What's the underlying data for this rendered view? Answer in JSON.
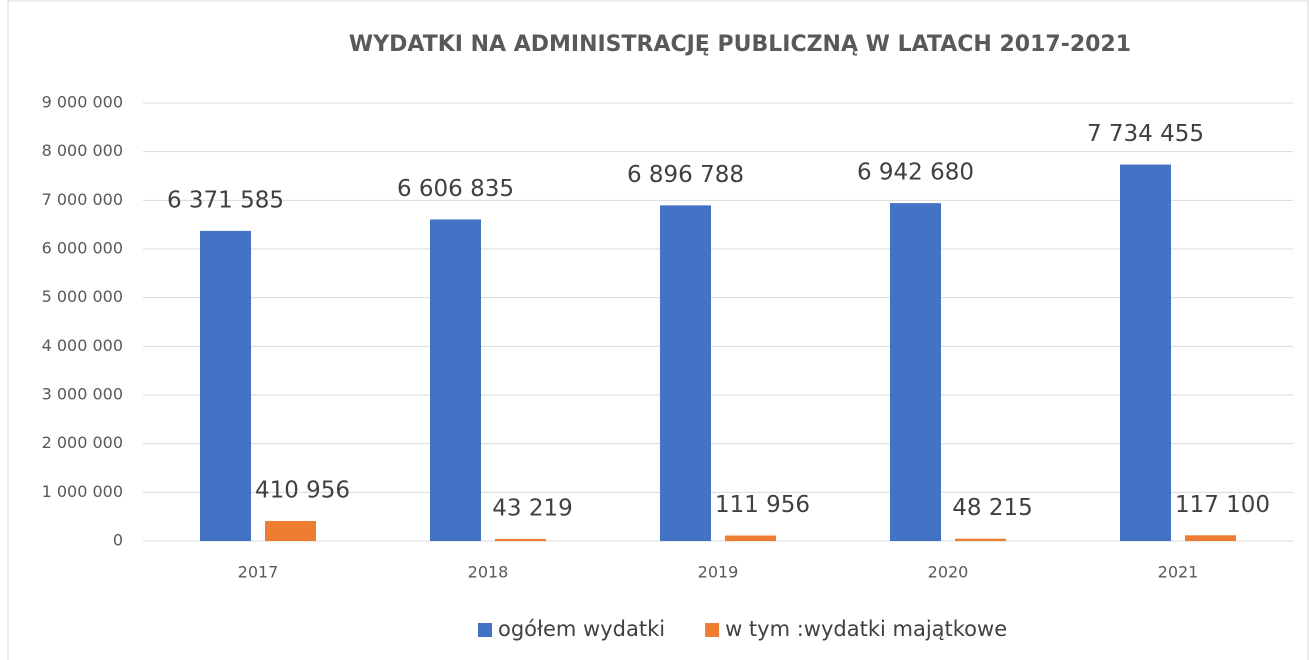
{
  "chart_data": {
    "type": "bar",
    "title": "WYDATKI NA ADMINISTRACJĘ  PUBLICZNĄ W LATACH 2017-2021",
    "categories": [
      "2017",
      "2018",
      "2019",
      "2020",
      "2021"
    ],
    "series": [
      {
        "name": "ogółem wydatki",
        "color": "#4472c4",
        "values": [
          6371585,
          6606835,
          6896788,
          6942680,
          7734455
        ],
        "value_labels": [
          "6 371 585",
          "6 606 835",
          "6 896 788",
          "6 942 680",
          "7 734 455"
        ]
      },
      {
        "name": "w tym :wydatki majątkowe",
        "color": "#ed7d31",
        "values": [
          410956,
          43219,
          111956,
          48215,
          117100
        ],
        "value_labels": [
          "410 956",
          "43 219",
          "111 956",
          "48 215",
          "117 100"
        ]
      }
    ],
    "ylim": [
      0,
      9000000
    ],
    "yticks": [
      0,
      {
        "value": 1000000,
        "label": "1 000 000"
      },
      {
        "value": 2000000,
        "label": "2 000 000"
      },
      {
        "value": 3000000,
        "label": "3 000 000"
      },
      {
        "value": 4000000,
        "label": "4 000 000"
      },
      {
        "value": 5000000,
        "label": "5 000 000"
      },
      {
        "value": 6000000,
        "label": "6 000 000"
      },
      {
        "value": 7000000,
        "label": "7 000 000"
      },
      {
        "value": 8000000,
        "label": "8 000 000"
      },
      {
        "value": 9000000,
        "label": "9 000 000"
      }
    ],
    "grid": true,
    "legend": "bottom"
  }
}
